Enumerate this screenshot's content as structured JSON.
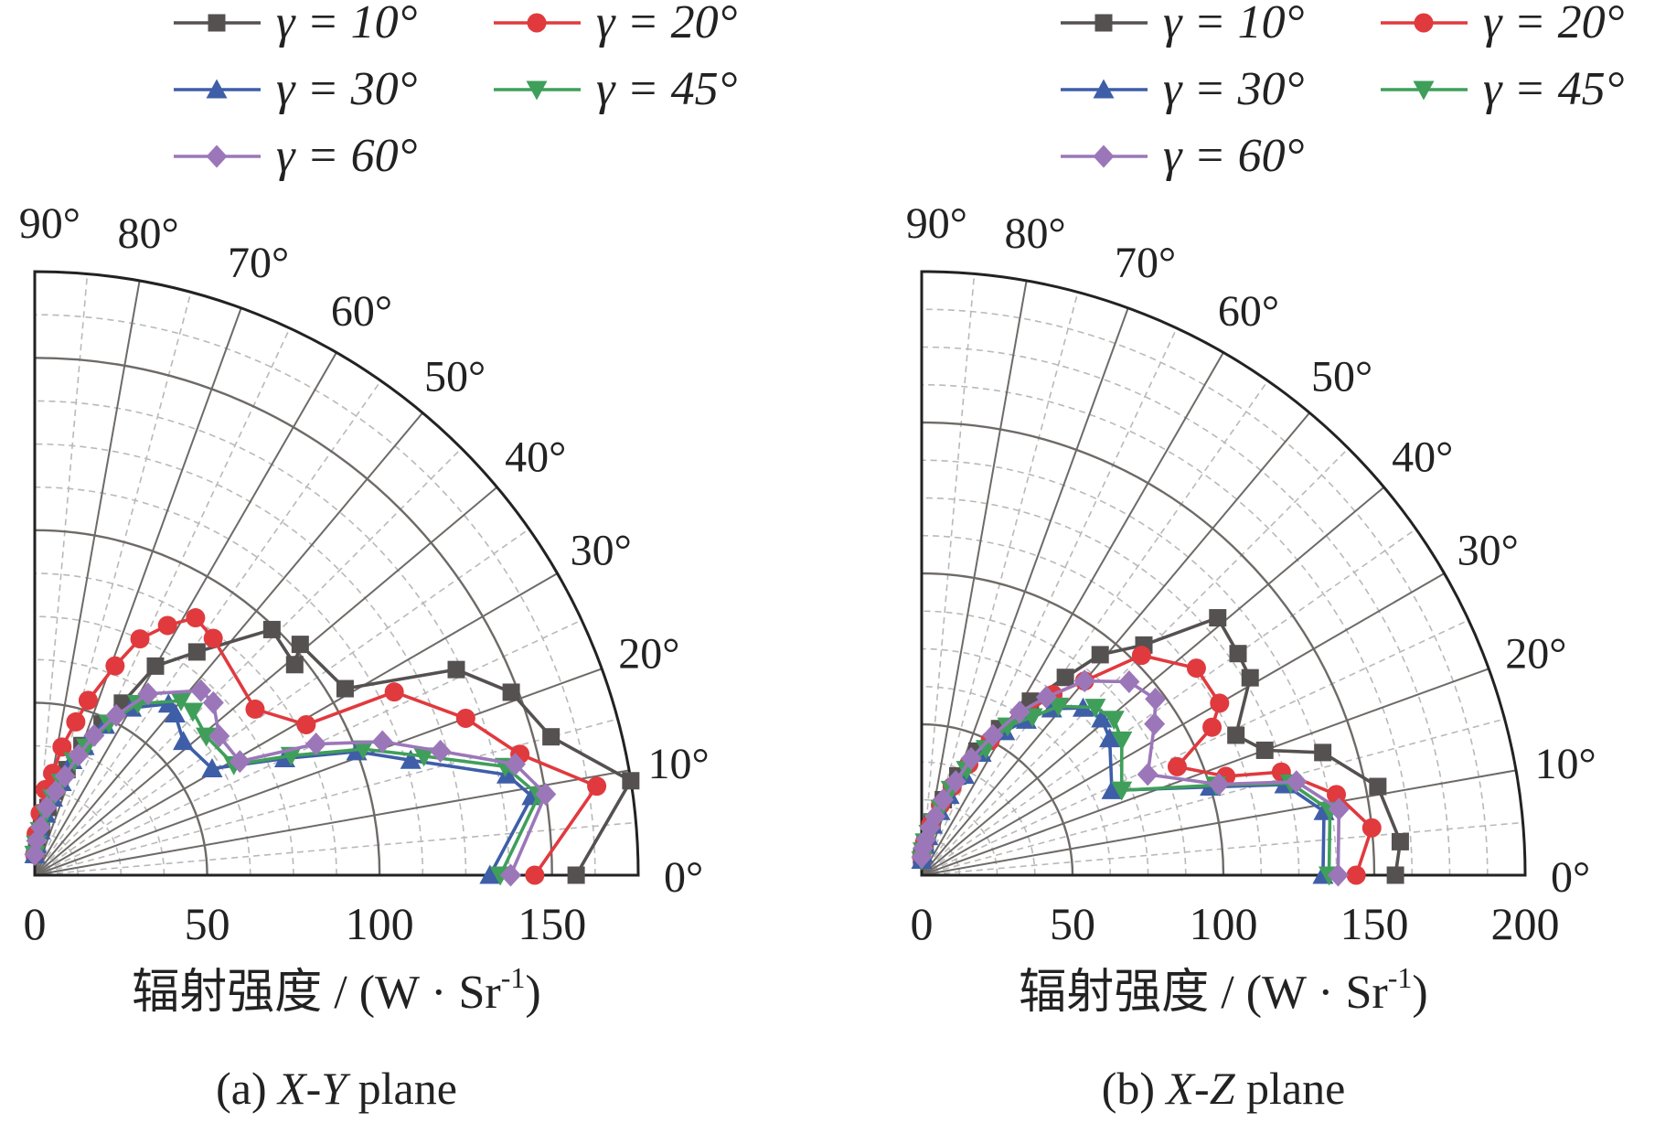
{
  "chart_data": [
    {
      "type": "polar-line",
      "panel": "a",
      "caption_prefix": "(a) ",
      "caption_plane": "X-Y",
      "caption_suffix": " plane",
      "xlabel_main": "辐射强度 / (W · Sr",
      "xlabel_exp": "-1",
      "xlabel_close": ")",
      "radial_range": [
        0,
        175
      ],
      "radial_ticks": [
        0,
        50,
        100,
        150
      ],
      "radial_tick_labels": [
        "0",
        "50",
        "100",
        "150"
      ],
      "angle_range": [
        0,
        90
      ],
      "angle_ticks": [
        0,
        10,
        20,
        30,
        40,
        50,
        60,
        70,
        80,
        90
      ],
      "angle_tick_labels": [
        "0°",
        "10°",
        "20°",
        "30°",
        "40°",
        "50°",
        "60°",
        "70°",
        "80°",
        "90°"
      ],
      "grid": true,
      "legend_position": "top",
      "series": [
        {
          "name": "γ = 10°",
          "color": "#555150",
          "marker": "square",
          "r": [
            157,
            175,
            155,
            148,
            136,
            105,
            102,
            97,
            99,
            80,
            70,
            56,
            48,
            40,
            32,
            25,
            20,
            14,
            8,
            6
          ],
          "theta": [
            0,
            9,
            15,
            21,
            26,
            31,
            41,
            39,
            46,
            54,
            60,
            63,
            66,
            70,
            73,
            77,
            79,
            82,
            86,
            90
          ]
        },
        {
          "name": "γ = 20°",
          "color": "#e03a3e",
          "marker": "circle",
          "r": [
            145,
            165,
            145,
            133,
            117,
            90,
            80,
            86,
            88,
            82,
            75,
            65,
            53,
            46,
            38,
            30,
            25,
            18,
            12,
            6
          ],
          "theta": [
            0,
            9,
            14,
            20,
            27,
            29,
            37,
            53,
            58,
            62,
            66,
            69,
            73,
            75,
            78,
            80,
            83,
            85,
            88,
            90
          ]
        },
        {
          "name": "γ = 30°",
          "color": "#3e5ea8",
          "marker": "up-triangle",
          "r": [
            132,
            146,
            140,
            114,
            100,
            80,
            60,
            58,
            62,
            63,
            56,
            48,
            40,
            35,
            28,
            23,
            18,
            13,
            9,
            6
          ],
          "theta": [
            0,
            9,
            12,
            17,
            21,
            25,
            31,
            42,
            49,
            52,
            60,
            65,
            69,
            72,
            74,
            77,
            80,
            83,
            87,
            90
          ]
        },
        {
          "name": "γ = 45°",
          "color": "#3f9f5a",
          "marker": "down-triangle",
          "r": [
            135,
            148,
            140,
            118,
            102,
            82,
            66,
            64,
            66,
            66,
            58,
            49,
            40,
            35,
            28,
            23,
            18,
            13,
            9,
            6
          ],
          "theta": [
            0,
            9,
            13,
            17,
            21,
            25,
            29,
            39,
            46,
            50,
            59,
            64,
            68,
            71,
            74,
            77,
            80,
            83,
            87,
            90
          ]
        },
        {
          "name": "γ = 60°",
          "color": "#9b77b9",
          "marker": "diamond",
          "r": [
            138,
            150,
            143,
            123,
            108,
            90,
            68,
            67,
            72,
            72,
            62,
            52,
            44,
            37,
            30,
            25,
            20,
            14,
            10,
            6
          ],
          "theta": [
            0,
            9,
            13,
            17,
            21,
            25,
            29,
            37,
            44,
            48,
            58,
            63,
            67,
            70,
            73,
            76,
            80,
            83,
            87,
            90
          ]
        }
      ]
    },
    {
      "type": "polar-line",
      "panel": "b",
      "caption_prefix": "(b) ",
      "caption_plane": "X-Z",
      "caption_suffix": " plane",
      "xlabel_main": "辐射强度 / (W · Sr",
      "xlabel_exp": "-1",
      "xlabel_close": ")",
      "radial_range": [
        0,
        200
      ],
      "radial_ticks": [
        0,
        50,
        100,
        150,
        200
      ],
      "radial_tick_labels": [
        "0",
        "50",
        "100",
        "150",
        "200"
      ],
      "angle_range": [
        0,
        90
      ],
      "angle_ticks": [
        0,
        10,
        20,
        30,
        40,
        50,
        60,
        70,
        80,
        90
      ],
      "angle_tick_labels": [
        "0°",
        "10°",
        "20°",
        "30°",
        "40°",
        "50°",
        "60°",
        "70°",
        "80°",
        "90°"
      ],
      "grid": true,
      "legend_position": "top",
      "series": [
        {
          "name": "γ = 10°",
          "color": "#555150",
          "marker": "square",
          "r": [
            157,
            159,
            154,
            139,
            121,
            114,
            127,
            128,
            130,
            106,
            94,
            81,
            68,
            55,
            45,
            35,
            26,
            18,
            11,
            6
          ],
          "theta": [
            0,
            4,
            11,
            17,
            20,
            24,
            31,
            35,
            41,
            46,
            51,
            54,
            58,
            62,
            66,
            70,
            74,
            79,
            84,
            90
          ]
        },
        {
          "name": "γ = 20°",
          "color": "#e03a3e",
          "marker": "circle",
          "r": [
            144,
            150,
            140,
            124,
            106,
            92,
            108,
            114,
            114,
            103,
            84,
            74,
            62,
            50,
            40,
            31,
            24,
            17,
            11,
            6
          ],
          "theta": [
            0,
            6,
            11,
            16,
            18,
            23,
            27,
            30,
            37,
            45,
            50,
            54,
            58,
            63,
            67,
            71,
            75,
            80,
            85,
            90
          ]
        },
        {
          "name": "γ = 30°",
          "color": "#3e5ea8",
          "marker": "up-triangle",
          "r": [
            133,
            135,
            124,
            100,
            69,
            77,
            79,
            77,
            70,
            62,
            55,
            45,
            36,
            28,
            22,
            17,
            13,
            10,
            7,
            5
          ],
          "theta": [
            0,
            9,
            14,
            17,
            24,
            36,
            41,
            46,
            52,
            56,
            60,
            64,
            67,
            71,
            74,
            78,
            81,
            84,
            87,
            90
          ]
        },
        {
          "name": "γ = 45°",
          "color": "#3f9f5a",
          "marker": "down-triangle",
          "r": [
            135,
            137,
            126,
            102,
            72,
            80,
            82,
            80,
            72,
            64,
            57,
            47,
            38,
            30,
            23,
            18,
            14,
            11,
            8,
            5
          ],
          "theta": [
            0,
            9,
            14,
            17,
            23,
            34,
            39,
            44,
            51,
            55,
            60,
            63,
            67,
            71,
            74,
            77,
            80,
            84,
            87,
            90
          ]
        },
        {
          "name": "γ = 60°",
          "color": "#9b77b9",
          "marker": "diamond",
          "r": [
            138,
            140,
            128,
            103,
            82,
            92,
            97,
            94,
            84,
            72,
            63,
            52,
            42,
            33,
            26,
            20,
            16,
            12,
            9,
            6
          ],
          "theta": [
            0,
            9,
            14,
            17,
            24,
            33,
            37,
            43,
            50,
            55,
            59,
            63,
            67,
            70,
            74,
            77,
            80,
            83,
            87,
            90
          ]
        }
      ]
    }
  ]
}
